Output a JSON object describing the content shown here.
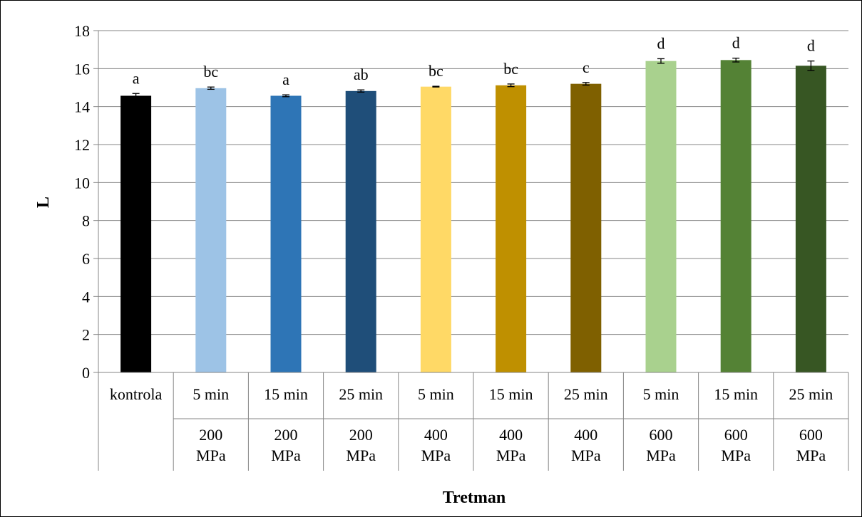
{
  "chart_data": {
    "type": "bar",
    "title": "",
    "xlabel": "Tretman",
    "ylabel": "L",
    "ylim": [
      0,
      18
    ],
    "yticks": [
      "0",
      "2",
      "4",
      "6",
      "8",
      "10",
      "12",
      "14",
      "16",
      "18"
    ],
    "grid": true,
    "legend": "none",
    "categories": [
      {
        "time": "kontrola",
        "pressure": [
          "",
          ""
        ]
      },
      {
        "time": "5 min",
        "pressure": [
          "200",
          "MPa"
        ]
      },
      {
        "time": "15 min",
        "pressure": [
          "200",
          "MPa"
        ]
      },
      {
        "time": "25 min",
        "pressure": [
          "200",
          "MPa"
        ]
      },
      {
        "time": "5 min",
        "pressure": [
          "400",
          "MPa"
        ]
      },
      {
        "time": "15 min",
        "pressure": [
          "400",
          "MPa"
        ]
      },
      {
        "time": "25 min",
        "pressure": [
          "400",
          "MPa"
        ]
      },
      {
        "time": "5 min",
        "pressure": [
          "600",
          "MPa"
        ]
      },
      {
        "time": "15 min",
        "pressure": [
          "600",
          "MPa"
        ]
      },
      {
        "time": "25 min",
        "pressure": [
          "600",
          "MPa"
        ]
      }
    ],
    "values": [
      14.57,
      14.97,
      14.57,
      14.82,
      15.05,
      15.12,
      15.2,
      16.4,
      16.45,
      16.15
    ],
    "errors": [
      0.12,
      0.06,
      0.05,
      0.06,
      0.02,
      0.07,
      0.07,
      0.12,
      0.1,
      0.25
    ],
    "significance_labels": [
      "a",
      "bc",
      "a",
      "ab",
      "bc",
      "bc",
      "c",
      "d",
      "d",
      "d"
    ],
    "colors": [
      "#000000",
      "#9dc3e6",
      "#2e75b6",
      "#1f4e79",
      "#ffd966",
      "#bf9000",
      "#7f6000",
      "#a9d18e",
      "#548235",
      "#375623"
    ]
  }
}
